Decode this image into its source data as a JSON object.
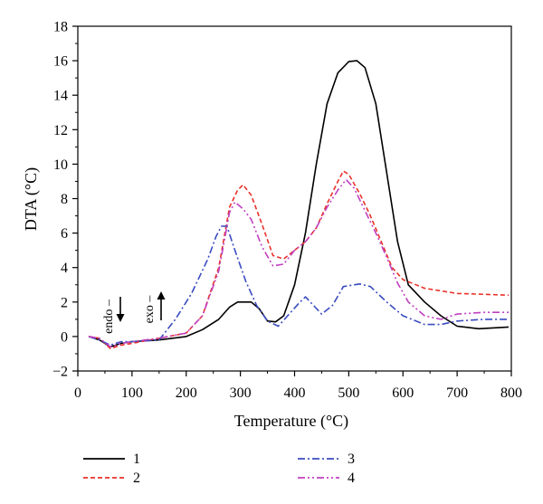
{
  "chart_data": {
    "type": "line",
    "xlabel": "Temperature (°C)",
    "ylabel": "DTA (°C)",
    "xlim": [
      0,
      800
    ],
    "ylim": [
      -2,
      18
    ],
    "xticks": [
      0,
      100,
      200,
      300,
      400,
      500,
      600,
      700,
      800
    ],
    "yticks": [
      -2,
      0,
      2,
      4,
      6,
      8,
      10,
      12,
      14,
      16,
      18
    ],
    "grid": false,
    "legend_position": "bottom",
    "annotations": {
      "endo": "endo –",
      "exo": "exo –"
    },
    "series": [
      {
        "name": "1",
        "color": "#000000",
        "dash": "solid",
        "points": [
          [
            20,
            0
          ],
          [
            40,
            -0.2
          ],
          [
            60,
            -0.6
          ],
          [
            80,
            -0.4
          ],
          [
            100,
            -0.3
          ],
          [
            150,
            -0.2
          ],
          [
            200,
            0
          ],
          [
            230,
            0.4
          ],
          [
            260,
            1
          ],
          [
            280,
            1.7
          ],
          [
            295,
            2
          ],
          [
            320,
            2
          ],
          [
            335,
            1.6
          ],
          [
            350,
            0.9
          ],
          [
            365,
            0.85
          ],
          [
            380,
            1.2
          ],
          [
            400,
            3
          ],
          [
            420,
            6
          ],
          [
            440,
            10
          ],
          [
            460,
            13.5
          ],
          [
            480,
            15.3
          ],
          [
            500,
            15.95
          ],
          [
            515,
            16
          ],
          [
            530,
            15.6
          ],
          [
            550,
            13.5
          ],
          [
            570,
            9.5
          ],
          [
            590,
            5.5
          ],
          [
            610,
            3
          ],
          [
            640,
            2
          ],
          [
            670,
            1.2
          ],
          [
            700,
            0.6
          ],
          [
            740,
            0.45
          ],
          [
            795,
            0.55
          ]
        ]
      },
      {
        "name": "2",
        "color": "#e8322b",
        "dash": "dashed",
        "points": [
          [
            20,
            0
          ],
          [
            40,
            -0.1
          ],
          [
            60,
            -0.7
          ],
          [
            80,
            -0.5
          ],
          [
            100,
            -0.4
          ],
          [
            150,
            -0.1
          ],
          [
            200,
            0.2
          ],
          [
            230,
            1.2
          ],
          [
            260,
            4
          ],
          [
            280,
            7.5
          ],
          [
            295,
            8.5
          ],
          [
            305,
            8.8
          ],
          [
            320,
            8.2
          ],
          [
            340,
            6.5
          ],
          [
            360,
            4.7
          ],
          [
            380,
            4.5
          ],
          [
            400,
            5
          ],
          [
            420,
            5.5
          ],
          [
            440,
            6.3
          ],
          [
            460,
            7.7
          ],
          [
            480,
            9
          ],
          [
            490,
            9.6
          ],
          [
            500,
            9.4
          ],
          [
            520,
            8.3
          ],
          [
            540,
            7
          ],
          [
            560,
            5.5
          ],
          [
            580,
            4
          ],
          [
            600,
            3.3
          ],
          [
            640,
            2.8
          ],
          [
            700,
            2.5
          ],
          [
            795,
            2.4
          ]
        ]
      },
      {
        "name": "3",
        "color": "#3a4cc0",
        "dash": "dash-dot",
        "points": [
          [
            20,
            0
          ],
          [
            40,
            -0.2
          ],
          [
            60,
            -0.5
          ],
          [
            80,
            -0.3
          ],
          [
            100,
            -0.3
          ],
          [
            150,
            -0.2
          ],
          [
            160,
            0.2
          ],
          [
            180,
            1
          ],
          [
            210,
            2.5
          ],
          [
            240,
            4.5
          ],
          [
            255,
            5.8
          ],
          [
            265,
            6.4
          ],
          [
            275,
            6.4
          ],
          [
            290,
            5
          ],
          [
            310,
            3.2
          ],
          [
            330,
            1.8
          ],
          [
            350,
            0.9
          ],
          [
            370,
            0.6
          ],
          [
            390,
            1.3
          ],
          [
            410,
            2
          ],
          [
            420,
            2.3
          ],
          [
            435,
            1.8
          ],
          [
            450,
            1.3
          ],
          [
            470,
            1.8
          ],
          [
            490,
            2.9
          ],
          [
            520,
            3.05
          ],
          [
            540,
            2.9
          ],
          [
            570,
            2
          ],
          [
            600,
            1.2
          ],
          [
            640,
            0.7
          ],
          [
            670,
            0.7
          ],
          [
            700,
            0.9
          ],
          [
            750,
            1
          ],
          [
            795,
            1
          ]
        ]
      },
      {
        "name": "4",
        "color": "#c040c0",
        "dash": "dash-dot-dot",
        "points": [
          [
            20,
            0
          ],
          [
            40,
            -0.1
          ],
          [
            60,
            -0.6
          ],
          [
            80,
            -0.4
          ],
          [
            100,
            -0.3
          ],
          [
            150,
            -0.1
          ],
          [
            200,
            0.2
          ],
          [
            230,
            1.2
          ],
          [
            260,
            3.8
          ],
          [
            280,
            7.2
          ],
          [
            290,
            7.8
          ],
          [
            305,
            7.4
          ],
          [
            320,
            6.8
          ],
          [
            340,
            5.2
          ],
          [
            360,
            4.1
          ],
          [
            380,
            4.2
          ],
          [
            400,
            5
          ],
          [
            420,
            5.5
          ],
          [
            440,
            6.3
          ],
          [
            460,
            7.5
          ],
          [
            480,
            8.5
          ],
          [
            495,
            9.1
          ],
          [
            510,
            8.6
          ],
          [
            530,
            7.3
          ],
          [
            550,
            6
          ],
          [
            570,
            4.6
          ],
          [
            590,
            3.1
          ],
          [
            610,
            2
          ],
          [
            640,
            1.2
          ],
          [
            670,
            1
          ],
          [
            700,
            1.3
          ],
          [
            750,
            1.4
          ],
          [
            795,
            1.4
          ]
        ]
      }
    ]
  }
}
